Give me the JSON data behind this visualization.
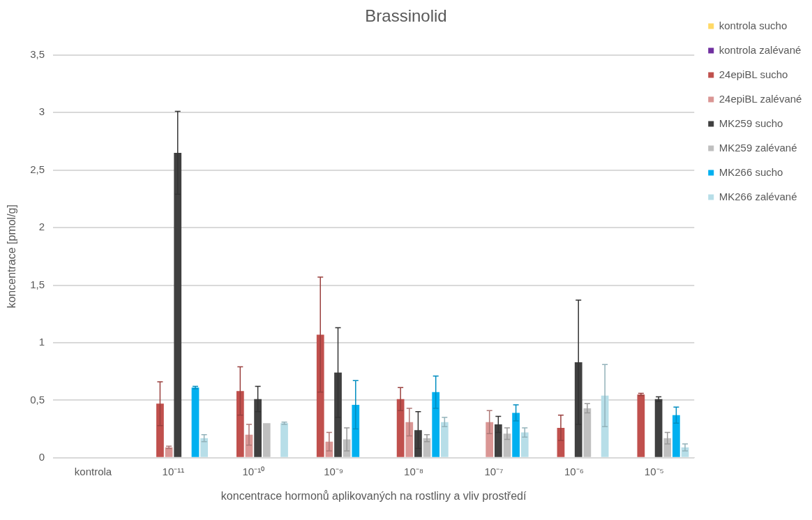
{
  "chart_data": {
    "type": "bar",
    "title": "Brassinolid",
    "xlabel": "koncentrace hormonů aplikovaných na rostliny a vliv prostředí",
    "ylabel": "koncentrace [pmol/g]",
    "categories": [
      "kontrola",
      "10⁻¹¹",
      "10⁻¹⁰",
      "10⁻⁹",
      "10⁻⁸",
      "10⁻⁷",
      "10⁻⁶",
      "10⁻⁵"
    ],
    "series": [
      {
        "name": "kontrola sucho",
        "color": "#ffd966",
        "values": [
          null,
          null,
          null,
          null,
          null,
          null,
          null,
          null
        ]
      },
      {
        "name": "kontrola zalévané",
        "color": "#7030a0",
        "values": [
          null,
          null,
          null,
          null,
          null,
          null,
          null,
          null
        ]
      },
      {
        "name": "24epiBL sucho",
        "color": "#c0504d",
        "values": [
          null,
          0.47,
          0.58,
          1.07,
          0.51,
          null,
          0.26,
          0.55
        ],
        "errors": [
          null,
          0.19,
          0.21,
          0.5,
          0.1,
          null,
          0.11,
          0.01
        ]
      },
      {
        "name": "24epiBL zalévané",
        "color": "#da9694",
        "values": [
          null,
          0.09,
          0.2,
          0.14,
          0.31,
          0.31,
          null,
          null
        ],
        "errors": [
          null,
          0.01,
          0.09,
          0.08,
          0.12,
          0.1,
          null,
          null
        ]
      },
      {
        "name": "MK259 sucho",
        "color": "#404040",
        "values": [
          null,
          2.65,
          0.51,
          0.74,
          0.24,
          0.29,
          0.83,
          0.51
        ],
        "errors": [
          null,
          0.36,
          0.11,
          0.39,
          0.16,
          0.07,
          0.54,
          0.02
        ]
      },
      {
        "name": "MK259 zalévané",
        "color": "#bfbfbf",
        "values": [
          null,
          null,
          0.3,
          0.16,
          0.17,
          0.21,
          0.43,
          0.17
        ],
        "errors": [
          null,
          null,
          null,
          0.1,
          0.03,
          0.05,
          0.04,
          0.05
        ]
      },
      {
        "name": "MK266 sucho",
        "color": "#00b0f0",
        "values": [
          null,
          0.61,
          null,
          0.46,
          0.57,
          0.39,
          null,
          0.37
        ],
        "errors": [
          null,
          0.01,
          null,
          0.21,
          0.14,
          0.07,
          null,
          0.07
        ]
      },
      {
        "name": "MK266 zalévané",
        "color": "#b7dee8",
        "values": [
          null,
          0.17,
          0.3,
          null,
          0.31,
          0.22,
          0.54,
          0.09
        ],
        "errors": [
          null,
          0.03,
          0.01,
          null,
          0.04,
          0.04,
          0.27,
          0.03
        ]
      }
    ],
    "ylim": [
      0,
      3.5
    ],
    "yticks": [
      {
        "value": 0,
        "label": "0"
      },
      {
        "value": 0.5,
        "label": "0,5"
      },
      {
        "value": 1,
        "label": "1"
      },
      {
        "value": 1.5,
        "label": "1,5"
      },
      {
        "value": 2,
        "label": "2"
      },
      {
        "value": 2.5,
        "label": "2,5"
      },
      {
        "value": 3,
        "label": "3"
      },
      {
        "value": 3.5,
        "label": "3,5"
      }
    ],
    "grid": "y",
    "legend": "right"
  }
}
